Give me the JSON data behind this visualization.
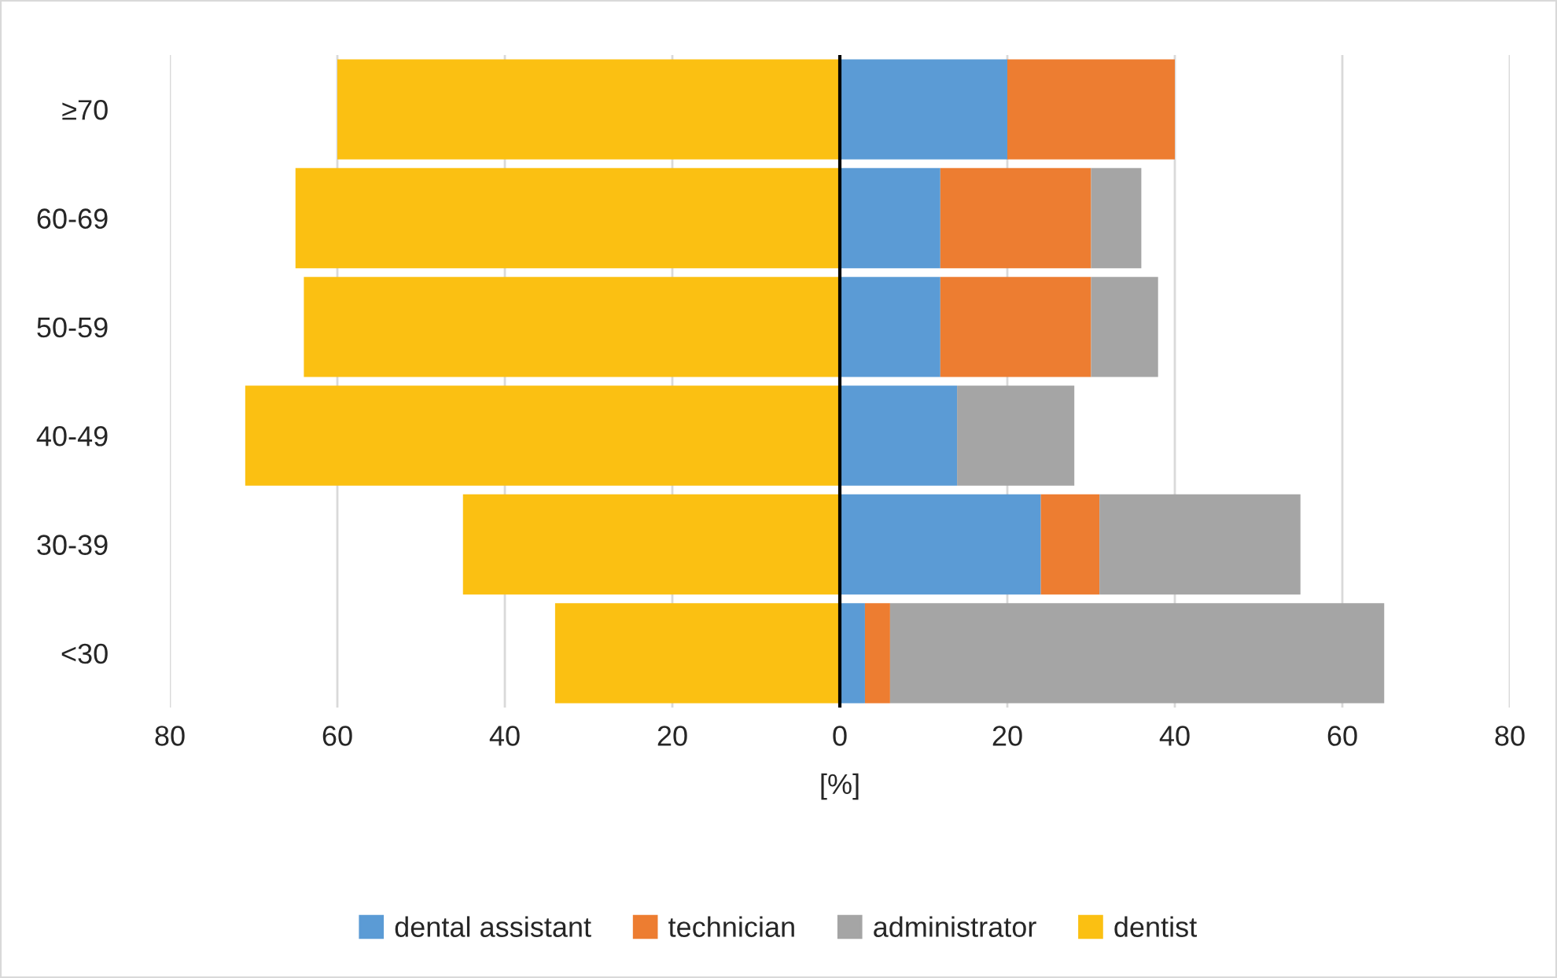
{
  "chart_data": {
    "type": "bar",
    "orientation": "horizontal",
    "stacked": true,
    "xlabel": "[%]",
    "categories": [
      "≥70",
      "60-69",
      "50-59",
      "40-49",
      "30-39",
      "<30"
    ],
    "series": [
      {
        "name": "dental assistant",
        "color": "#5b9bd5",
        "values": [
          20,
          12,
          12,
          14,
          24,
          3
        ]
      },
      {
        "name": "technician",
        "color": "#ed7d31",
        "values": [
          20,
          18,
          18,
          0,
          7,
          3
        ]
      },
      {
        "name": "administrator",
        "color": "#a5a5a5",
        "values": [
          0,
          6,
          8,
          14,
          24,
          59
        ]
      },
      {
        "name": "dentist",
        "color": "#fbc012",
        "values": [
          -60,
          -65,
          -64,
          -71,
          -45,
          -34
        ]
      }
    ],
    "xlim": [
      -80,
      80
    ],
    "xticks": [
      {
        "value": -80,
        "label": "80"
      },
      {
        "value": -60,
        "label": "60"
      },
      {
        "value": -40,
        "label": "40"
      },
      {
        "value": -20,
        "label": "20"
      },
      0,
      20,
      40,
      60,
      80
    ],
    "ref_lines": [
      {
        "axis": "x",
        "value": 0,
        "color": "#000000"
      }
    ],
    "grid": "x",
    "legend": "bottom"
  }
}
